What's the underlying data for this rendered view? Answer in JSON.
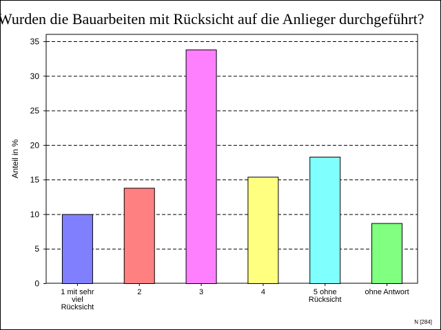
{
  "chart_data": {
    "type": "bar",
    "title": "Wurden die Bauarbeiten mit Rücksicht auf die Anlieger durchgeführt?",
    "xlabel": "",
    "ylabel": "Anteil in %",
    "categories": [
      "1 mit sehr viel Rücksicht",
      "2",
      "3",
      "4",
      "5 ohne Rücksicht",
      "ohne Antwort"
    ],
    "values": [
      10.0,
      13.8,
      33.8,
      15.4,
      18.3,
      8.7
    ],
    "colors": [
      "#8080ff",
      "#ff8080",
      "#ff80ff",
      "#ffff80",
      "#80ffff",
      "#80ff80"
    ],
    "ylim": [
      0,
      35
    ],
    "yticks": [
      0,
      5,
      10,
      15,
      20,
      25,
      30,
      35
    ],
    "grid": true,
    "legend": "none"
  },
  "footnote": "N [284]"
}
